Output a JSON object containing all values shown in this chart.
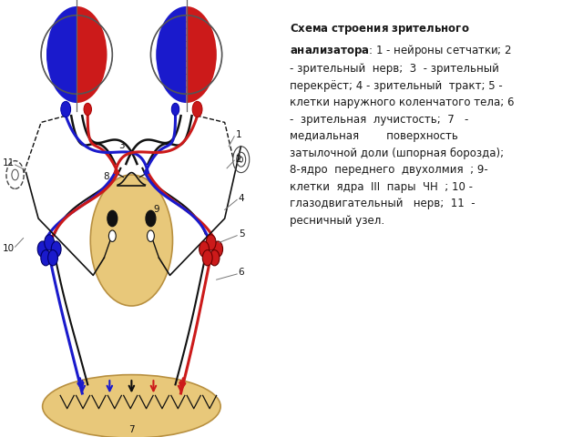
{
  "bg_color": "#ffffff",
  "text_color": "#1a1a1a",
  "title_bold": "Схема строения зрительного анализатора",
  "desc_text": ": 1 - нейроны сетчатки; 2 - зрительный нерв; 3 - зрительный перекрёст; 4 - зрительный тракт; 5 - клетки наружного коленчатого тела; 6 - зрительная лучистость; 7 - медиальная поверхность затылочной доли (шпорная борозда); 8-ядро переднего двухолмия ; 9-клетки ядра III пары ЧН ; 10 - глазодвигательный нерв; 11 - ресничный узел.",
  "font_size": 8.5,
  "blue": "#1a1acc",
  "red": "#cc1a1a",
  "black": "#111111",
  "beige": "#e8c87a",
  "beige_edge": "#b89040",
  "gray": "#777777",
  "label_fs": 7.5
}
